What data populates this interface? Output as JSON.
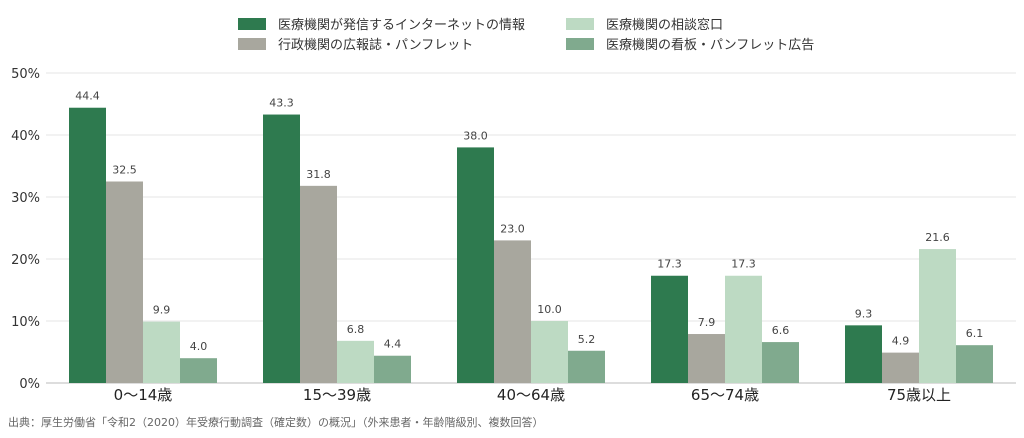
{
  "chart_data": {
    "type": "bar",
    "categories": [
      "0〜14歳",
      "15〜39歳",
      "40〜64歳",
      "65〜74歳",
      "75歳以上"
    ],
    "series": [
      {
        "name": "医療機関が発信するインターネットの情報",
        "color": "#2e7a4f",
        "values": [
          44.4,
          43.3,
          38.0,
          17.3,
          9.3
        ]
      },
      {
        "name": "行政機関の広報誌・パンフレット",
        "color": "#a8a79e",
        "values": [
          32.5,
          31.8,
          23.0,
          7.9,
          4.9
        ]
      },
      {
        "name": "医療機関の相談窓口",
        "color": "#bddac3",
        "values": [
          9.9,
          6.8,
          10.0,
          17.3,
          21.6
        ]
      },
      {
        "name": "医療機関の看板・パンフレット広告",
        "color": "#80aa8e",
        "values": [
          4.0,
          4.4,
          5.2,
          6.6,
          6.1
        ]
      }
    ],
    "value_labels": [
      [
        "44.4",
        "43.3",
        "38.0",
        "17.3",
        "9.3"
      ],
      [
        "32.5",
        "31.8",
        "23.0",
        "7.9",
        "4.9"
      ],
      [
        "9.9",
        "6.8",
        "10.0",
        "17.3",
        "21.6"
      ],
      [
        "4.0",
        "4.4",
        "5.2",
        "6.6",
        "6.1"
      ]
    ],
    "y_ticks": [
      "0%",
      "10%",
      "20%",
      "30%",
      "40%",
      "50%"
    ],
    "ylim": [
      0,
      50
    ],
    "grid": true,
    "legend_position": "top"
  },
  "source_note": "出典：厚生労働省「令和2（2020）年受療行動調査（確定数）の概況」（外来患者・年齢階級別、複数回答）"
}
